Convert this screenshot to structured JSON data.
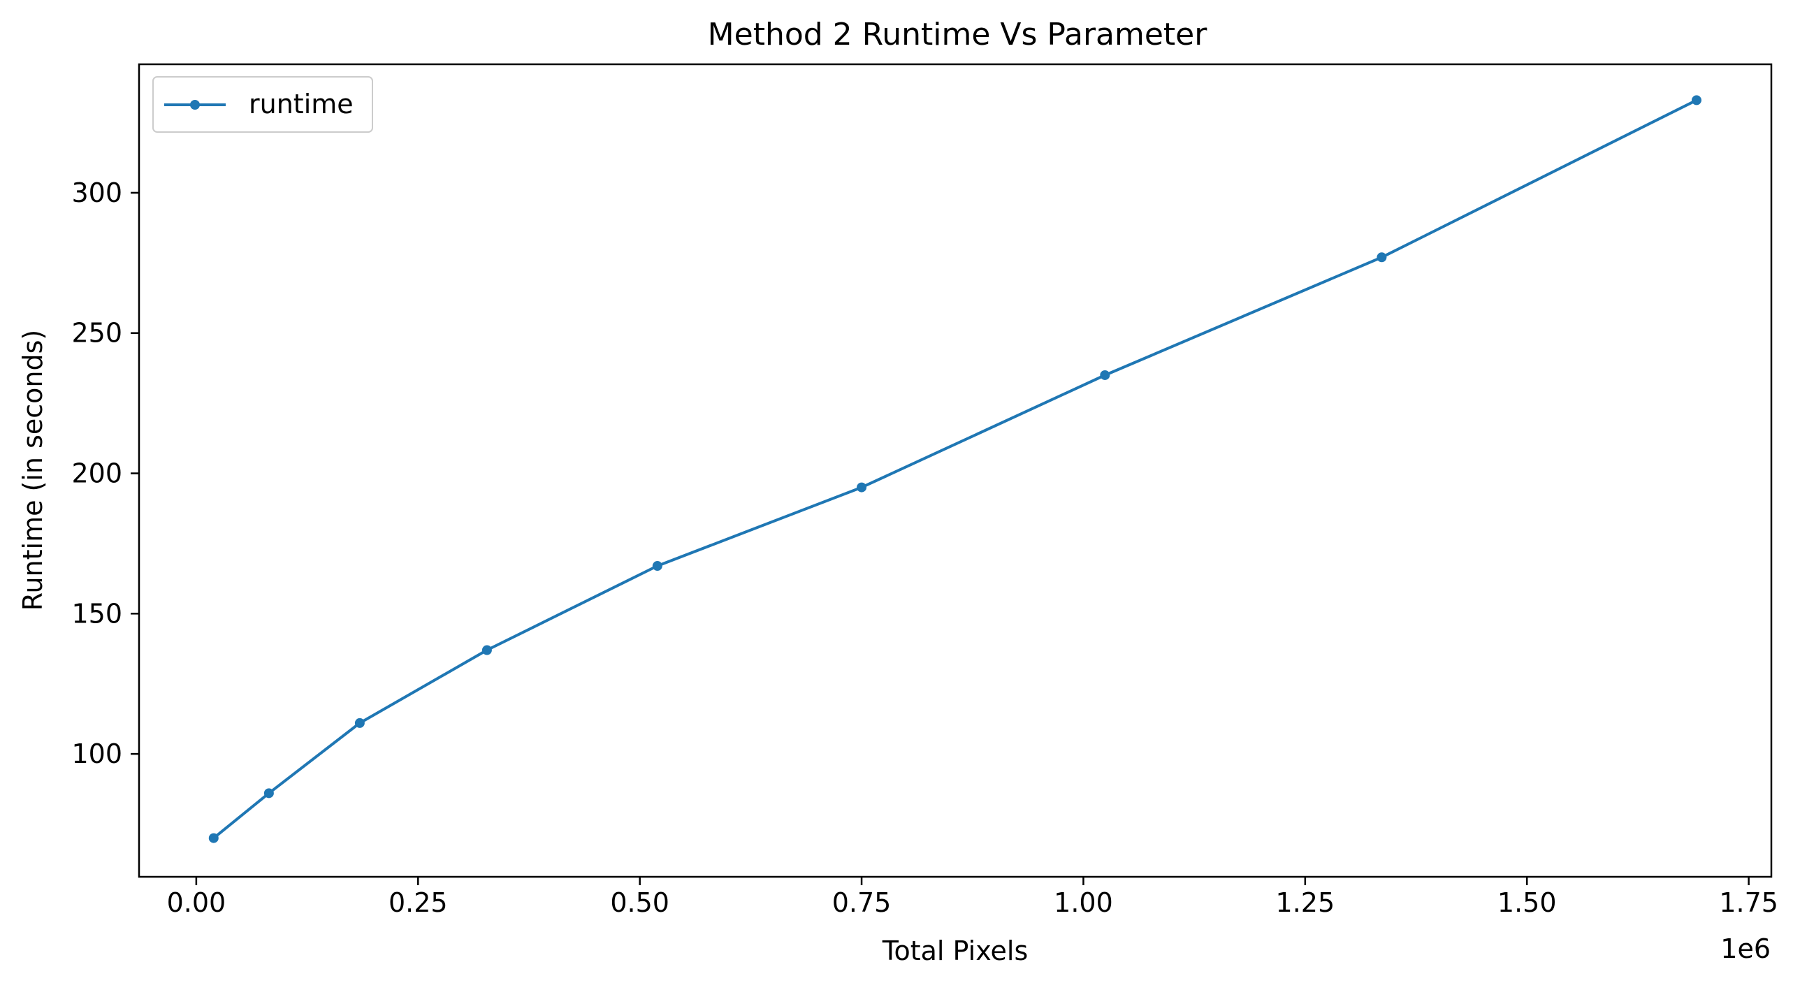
{
  "colors": {
    "series": "#1f77b4",
    "axes": "#000000",
    "background": "#ffffff",
    "legend_border": "#cccccc"
  },
  "chart_data": {
    "type": "line",
    "title": "Method 2 Runtime Vs Parameter",
    "xlabel": "Total Pixels",
    "ylabel": "Runtime (in seconds)",
    "x_offset_label": "1e6",
    "xlim": [
      -0.0645,
      1.7755
    ],
    "ylim": [
      56.2,
      345.8
    ],
    "x_ticks": [
      0.0,
      0.25,
      0.5,
      0.75,
      1.0,
      1.25,
      1.5,
      1.75
    ],
    "x_tick_labels": [
      "0.00",
      "0.25",
      "0.50",
      "0.75",
      "1.00",
      "1.25",
      "1.50",
      "1.75"
    ],
    "y_ticks": [
      100,
      150,
      200,
      250,
      300
    ],
    "y_tick_labels": [
      "100",
      "150",
      "200",
      "250",
      "300"
    ],
    "grid": false,
    "legend_position": "upper-left",
    "series": [
      {
        "name": "runtime",
        "marker": "circle",
        "x": [
          0.0196,
          0.0819,
          0.1843,
          0.3277,
          0.5198,
          0.75,
          1.0243,
          1.3363,
          1.6912
        ],
        "y": [
          70,
          86,
          111,
          137,
          167,
          195,
          235,
          277,
          333
        ]
      }
    ]
  }
}
